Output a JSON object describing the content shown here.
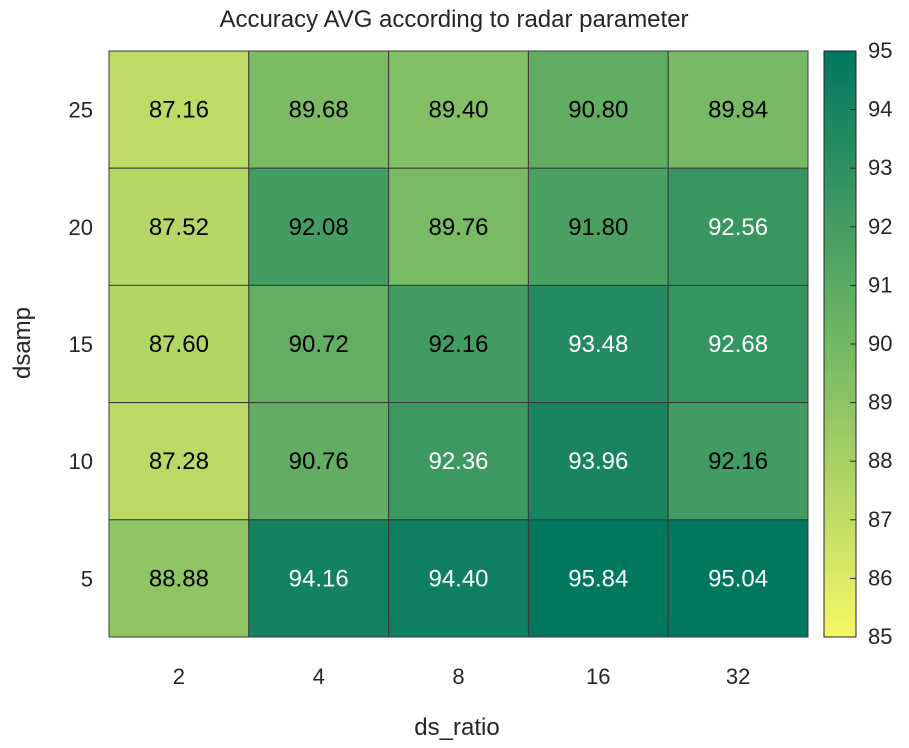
{
  "chart_data": {
    "type": "heatmap",
    "title": "Accuracy AVG according to radar parameter",
    "xlabel": "ds_ratio",
    "ylabel": "dsamp",
    "x_categories": [
      "2",
      "4",
      "8",
      "16",
      "32"
    ],
    "y_categories": [
      "25",
      "20",
      "15",
      "10",
      "5"
    ],
    "values": [
      [
        87.16,
        89.68,
        89.4,
        90.8,
        89.84
      ],
      [
        87.52,
        92.08,
        89.76,
        91.8,
        92.56
      ],
      [
        87.6,
        90.72,
        92.16,
        93.48,
        92.68
      ],
      [
        87.28,
        90.76,
        92.36,
        93.96,
        92.16
      ],
      [
        88.88,
        94.16,
        94.4,
        95.84,
        95.04
      ]
    ],
    "value_labels": [
      [
        "87.16",
        "89.68",
        "89.40",
        "90.80",
        "89.84"
      ],
      [
        "87.52",
        "92.08",
        "89.76",
        "91.80",
        "92.56"
      ],
      [
        "87.60",
        "90.72",
        "92.16",
        "93.48",
        "92.68"
      ],
      [
        "87.28",
        "90.76",
        "92.36",
        "93.96",
        "92.16"
      ],
      [
        "88.88",
        "94.16",
        "94.40",
        "95.84",
        "95.04"
      ]
    ],
    "colorbar": {
      "range": [
        85,
        95
      ],
      "ticks": [
        "85",
        "86",
        "87",
        "88",
        "89",
        "90",
        "91",
        "92",
        "93",
        "94",
        "95"
      ],
      "color_low": "#f6f766",
      "color_mid": "#73b764",
      "color_high": "#00775f"
    },
    "grid": true
  }
}
